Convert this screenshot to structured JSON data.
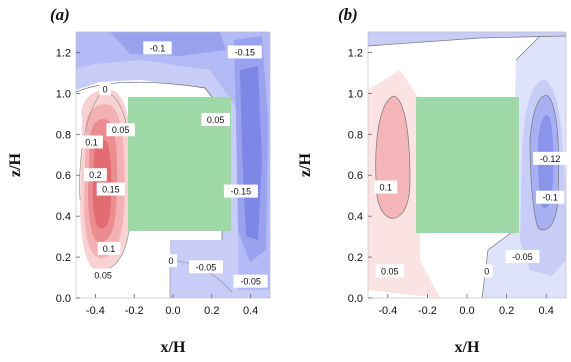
{
  "chart_data": [
    {
      "type": "contour",
      "panel_label": "a",
      "xlabel": "x/H",
      "ylabel": "z/H",
      "xlim": [
        -0.5,
        0.5
      ],
      "ylim": [
        0.0,
        1.3
      ],
      "x_ticks": [
        "-0.4",
        "-0.2",
        "0.0",
        "0.2",
        "0.4"
      ],
      "y_ticks": [
        "0.0",
        "0.2",
        "0.4",
        "0.6",
        "0.8",
        "1.0",
        "1.2"
      ],
      "colors": {
        "positive": "#f2a2a4",
        "negative": "#9aa4f0",
        "obstacle": "#9ed8a6"
      },
      "contour_labels": [
        {
          "text": "0.2",
          "x": -0.4,
          "z": 0.6
        },
        {
          "text": "0.05",
          "x": -0.36,
          "z": 0.11
        },
        {
          "text": "-0.15",
          "x": 0.35,
          "z": 0.52
        },
        {
          "text": "-0.05",
          "x": 0.17,
          "z": 0.15
        },
        {
          "text": "-0.1",
          "x": -0.08,
          "z": 1.22
        },
        {
          "text": "0",
          "x": -0.35,
          "z": 1.02
        },
        {
          "text": "0.05",
          "x": -0.27,
          "z": 0.82
        },
        {
          "text": "0.1",
          "x": -0.42,
          "z": 0.76
        },
        {
          "text": "0.15",
          "x": -0.32,
          "z": 0.53
        },
        {
          "text": "0.1",
          "x": -0.33,
          "z": 0.24
        },
        {
          "text": "0",
          "x": -0.01,
          "z": 0.18
        },
        {
          "text": "0.05",
          "x": 0.22,
          "z": 0.87
        },
        {
          "text": "-0.15",
          "x": 0.37,
          "z": 1.2
        },
        {
          "text": "-0.05",
          "x": 0.4,
          "z": 0.08
        }
      ]
    },
    {
      "type": "contour",
      "panel_label": "b",
      "xlabel": "x/H",
      "ylabel": "z/H",
      "xlim": [
        -0.5,
        0.5
      ],
      "ylim": [
        0.0,
        1.3
      ],
      "x_ticks": [
        "-0.4",
        "-0.2",
        "0.0",
        "0.2",
        "0.4"
      ],
      "y_ticks": [
        "0.0",
        "0.2",
        "0.4",
        "0.6",
        "0.8",
        "1.0",
        "1.2"
      ],
      "colors": {
        "positive": "#f2a2a4",
        "negative": "#9aa4f0",
        "obstacle": "#9ed8a6"
      },
      "contour_labels": [
        {
          "text": "0.1",
          "x": -0.41,
          "z": 0.54
        },
        {
          "text": "0.05",
          "x": -0.39,
          "z": 0.13
        },
        {
          "text": "0",
          "x": 0.1,
          "z": 0.13
        },
        {
          "text": "-0.05",
          "x": 0.28,
          "z": 0.2
        },
        {
          "text": "-0.12",
          "x": 0.42,
          "z": 0.68
        },
        {
          "text": "-0.1",
          "x": 0.42,
          "z": 0.49
        }
      ]
    }
  ]
}
